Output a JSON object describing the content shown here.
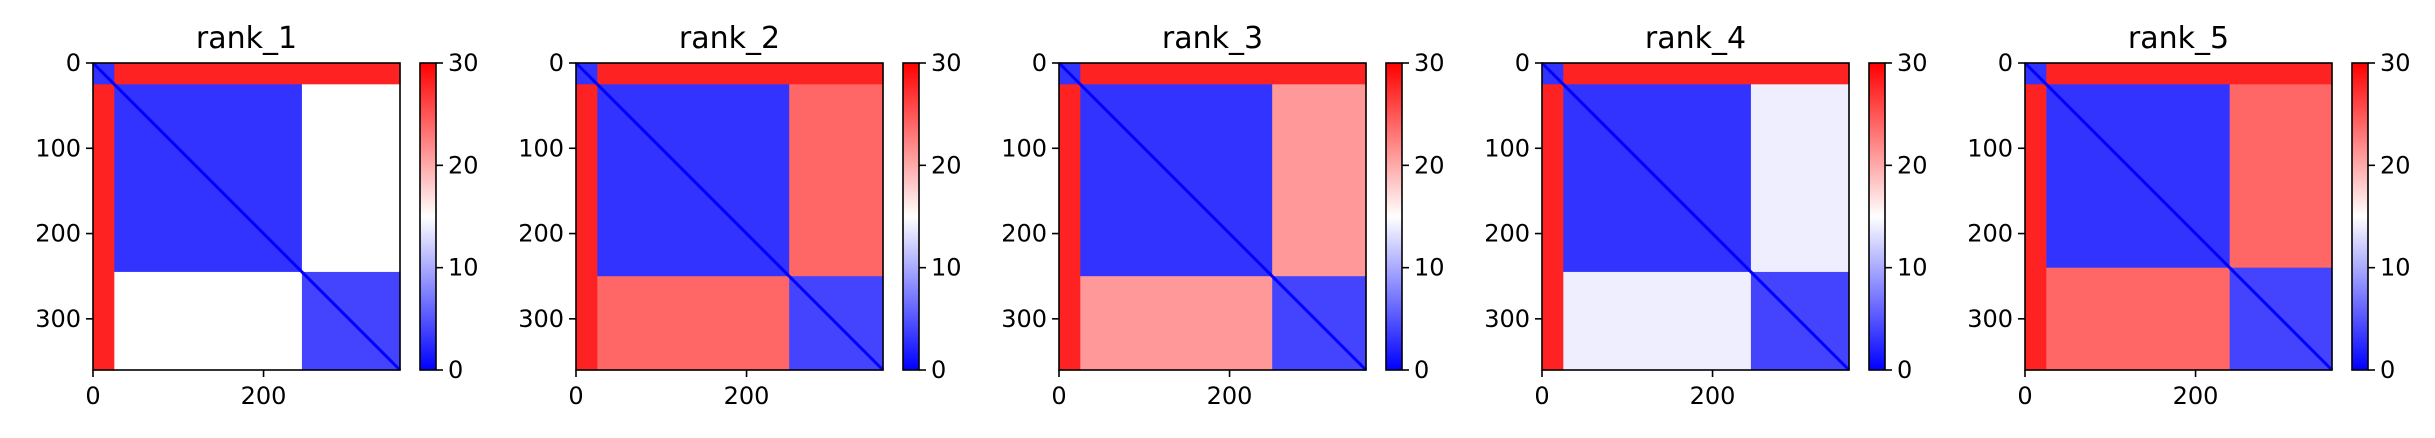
{
  "chart_data": [
    {
      "type": "heatmap",
      "title": "rank_1",
      "matrix_size": 360,
      "xlim": [
        0,
        360
      ],
      "ylim": [
        360,
        0
      ],
      "x_ticks": [
        0,
        200
      ],
      "y_ticks": [
        0,
        100,
        200,
        300
      ],
      "x_tick_labels": [
        "0",
        "200"
      ],
      "y_tick_labels": [
        "0",
        "100",
        "200",
        "300"
      ],
      "colorbar": {
        "min": 0,
        "max": 30,
        "ticks": [
          "0",
          "10",
          "20",
          "30"
        ],
        "colormap": "bwr"
      },
      "domain_boundaries": [
        [
          0,
          25
        ],
        [
          25,
          245
        ],
        [
          245,
          360
        ]
      ],
      "block_values": [
        [
          3,
          28,
          28
        ],
        [
          28,
          3,
          15
        ],
        [
          28,
          15,
          4
        ]
      ]
    },
    {
      "type": "heatmap",
      "title": "rank_2",
      "matrix_size": 360,
      "xlim": [
        0,
        360
      ],
      "ylim": [
        360,
        0
      ],
      "x_ticks": [
        0,
        200
      ],
      "y_ticks": [
        0,
        100,
        200,
        300
      ],
      "x_tick_labels": [
        "0",
        "200"
      ],
      "y_tick_labels": [
        "0",
        "100",
        "200",
        "300"
      ],
      "colorbar": {
        "min": 0,
        "max": 30,
        "ticks": [
          "0",
          "10",
          "20",
          "30"
        ],
        "colormap": "bwr"
      },
      "domain_boundaries": [
        [
          0,
          25
        ],
        [
          25,
          250
        ],
        [
          250,
          360
        ]
      ],
      "block_values": [
        [
          3,
          28,
          28
        ],
        [
          28,
          3,
          24
        ],
        [
          28,
          24,
          4
        ]
      ]
    },
    {
      "type": "heatmap",
      "title": "rank_3",
      "matrix_size": 360,
      "xlim": [
        0,
        360
      ],
      "ylim": [
        360,
        0
      ],
      "x_ticks": [
        0,
        200
      ],
      "y_ticks": [
        0,
        100,
        200,
        300
      ],
      "x_tick_labels": [
        "0",
        "200"
      ],
      "y_tick_labels": [
        "0",
        "100",
        "200",
        "300"
      ],
      "colorbar": {
        "min": 0,
        "max": 30,
        "ticks": [
          "0",
          "10",
          "20",
          "30"
        ],
        "colormap": "bwr"
      },
      "domain_boundaries": [
        [
          0,
          25
        ],
        [
          25,
          250
        ],
        [
          250,
          360
        ]
      ],
      "block_values": [
        [
          3,
          28,
          28
        ],
        [
          28,
          3,
          21
        ],
        [
          28,
          21,
          4
        ]
      ]
    },
    {
      "type": "heatmap",
      "title": "rank_4",
      "matrix_size": 360,
      "xlim": [
        0,
        360
      ],
      "ylim": [
        360,
        0
      ],
      "x_ticks": [
        0,
        200
      ],
      "y_ticks": [
        0,
        100,
        200,
        300
      ],
      "x_tick_labels": [
        "0",
        "200"
      ],
      "y_tick_labels": [
        "0",
        "100",
        "200",
        "300"
      ],
      "colorbar": {
        "min": 0,
        "max": 30,
        "ticks": [
          "0",
          "10",
          "20",
          "30"
        ],
        "colormap": "bwr"
      },
      "domain_boundaries": [
        [
          0,
          25
        ],
        [
          25,
          245
        ],
        [
          245,
          360
        ]
      ],
      "block_values": [
        [
          3,
          28,
          28
        ],
        [
          28,
          3,
          14
        ],
        [
          28,
          14,
          4
        ]
      ]
    },
    {
      "type": "heatmap",
      "title": "rank_5",
      "matrix_size": 360,
      "xlim": [
        0,
        360
      ],
      "ylim": [
        360,
        0
      ],
      "x_ticks": [
        0,
        200
      ],
      "y_ticks": [
        0,
        100,
        200,
        300
      ],
      "x_tick_labels": [
        "0",
        "200"
      ],
      "y_tick_labels": [
        "0",
        "100",
        "200",
        "300"
      ],
      "colorbar": {
        "min": 0,
        "max": 30,
        "ticks": [
          "0",
          "10",
          "20",
          "30"
        ],
        "colormap": "bwr"
      },
      "domain_boundaries": [
        [
          0,
          25
        ],
        [
          25,
          240
        ],
        [
          240,
          360
        ]
      ],
      "block_values": [
        [
          3,
          28,
          28
        ],
        [
          28,
          3,
          24
        ],
        [
          28,
          24,
          4
        ]
      ]
    }
  ],
  "colors": {
    "low": "#0000ff",
    "mid": "#ffffff",
    "high": "#ff0000",
    "axis": "#000000",
    "background": "#ffffff"
  }
}
